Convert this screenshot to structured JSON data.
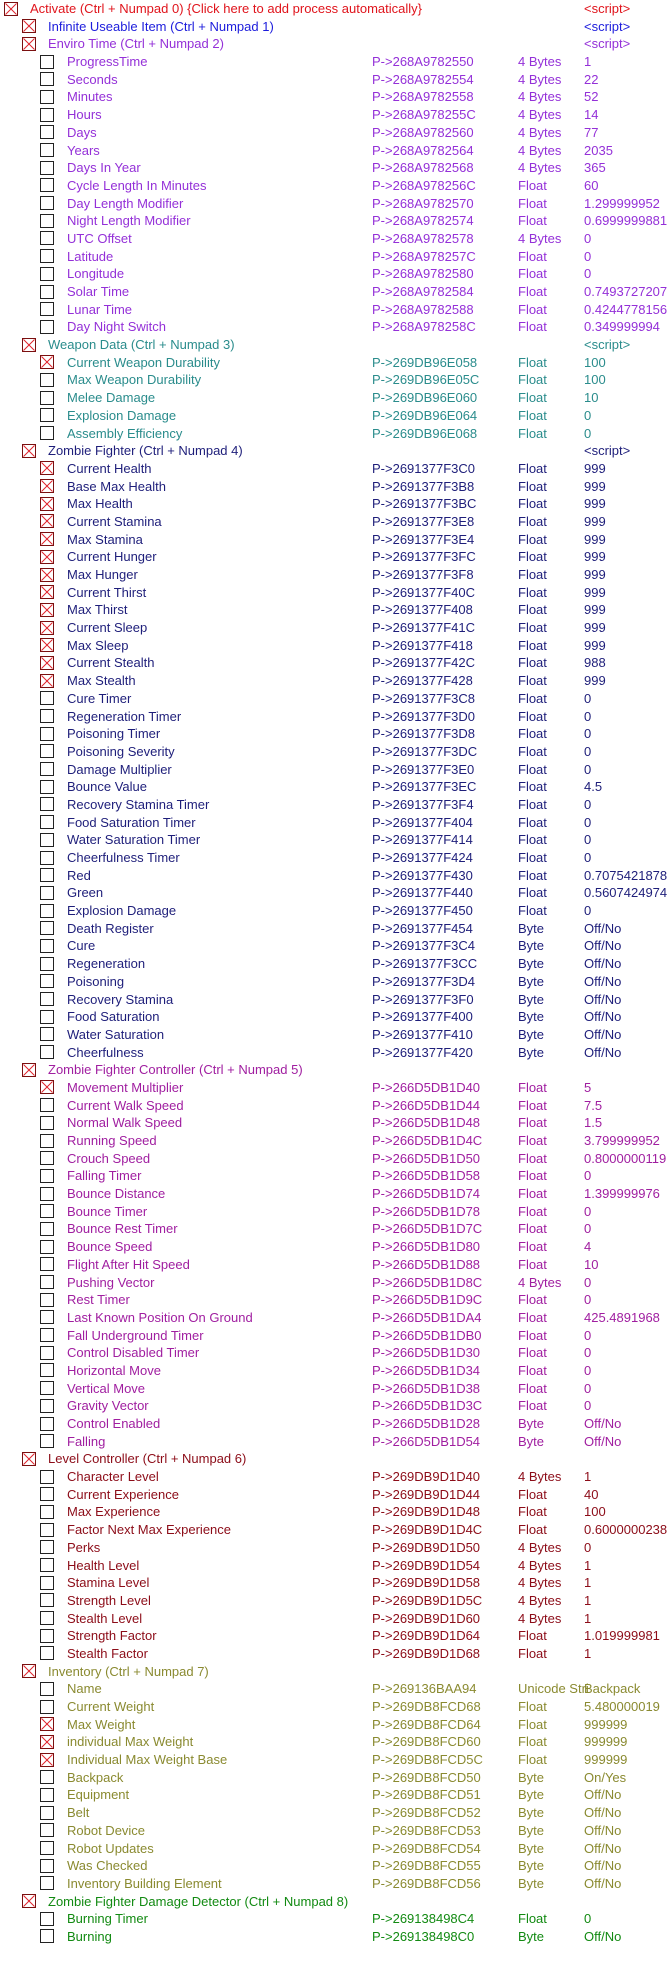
{
  "groups": [
    {
      "title": "Activate (Ctrl + Numpad 0) {Click here to add process automatically}",
      "level": 0,
      "checked": true,
      "value": "<script>",
      "color": "#e0141c",
      "items": []
    },
    {
      "title": "Infinite Useable Item (Ctrl + Numpad 1)",
      "level": 1,
      "checked": true,
      "value": "<script>",
      "color": "#1c1cdc",
      "items": []
    },
    {
      "title": "Enviro Time (Ctrl + Numpad 2)",
      "level": 1,
      "checked": true,
      "value": "<script>",
      "color": "#9430d8",
      "items": [
        [
          "ProgressTime",
          false,
          "P->268A9782550",
          "4 Bytes",
          "1"
        ],
        [
          "Seconds",
          false,
          "P->268A9782554",
          "4 Bytes",
          "22"
        ],
        [
          "Minutes",
          false,
          "P->268A9782558",
          "4 Bytes",
          "52"
        ],
        [
          "Hours",
          false,
          "P->268A978255C",
          "4 Bytes",
          "14"
        ],
        [
          "Days",
          false,
          "P->268A9782560",
          "4 Bytes",
          "77"
        ],
        [
          "Years",
          false,
          "P->268A9782564",
          "4 Bytes",
          "2035"
        ],
        [
          "Days In Year",
          false,
          "P->268A9782568",
          "4 Bytes",
          "365"
        ],
        [
          "Cycle Length In Minutes",
          false,
          "P->268A978256C",
          "Float",
          "60"
        ],
        [
          "Day Length Modifier",
          false,
          "P->268A9782570",
          "Float",
          "1.299999952"
        ],
        [
          "Night Length Modifier",
          false,
          "P->268A9782574",
          "Float",
          "0.6999999881"
        ],
        [
          "UTC Offset",
          false,
          "P->268A9782578",
          "4 Bytes",
          "0"
        ],
        [
          "Latitude",
          false,
          "P->268A978257C",
          "Float",
          "0"
        ],
        [
          "Longitude",
          false,
          "P->268A9782580",
          "Float",
          "0"
        ],
        [
          "Solar Time",
          false,
          "P->268A9782584",
          "Float",
          "0.7493727207"
        ],
        [
          "Lunar Time",
          false,
          "P->268A9782588",
          "Float",
          "0.4244778156"
        ],
        [
          "Day Night Switch",
          false,
          "P->268A978258C",
          "Float",
          "0.349999994"
        ]
      ]
    },
    {
      "title": "Weapon Data (Ctrl + Numpad 3)",
      "level": 1,
      "checked": true,
      "value": "<script>",
      "color": "#2a8c8c",
      "items": [
        [
          "Current Weapon Durability",
          true,
          "P->269DB96E058",
          "Float",
          "100"
        ],
        [
          "Max Weapon Durability",
          false,
          "P->269DB96E05C",
          "Float",
          "100"
        ],
        [
          "Melee Damage",
          false,
          "P->269DB96E060",
          "Float",
          "10"
        ],
        [
          "Explosion Damage",
          false,
          "P->269DB96E064",
          "Float",
          "0"
        ],
        [
          "Assembly Efficiency",
          false,
          "P->269DB96E068",
          "Float",
          "0"
        ]
      ]
    },
    {
      "title": "Zombie Fighter (Ctrl + Numpad 4)",
      "level": 1,
      "checked": true,
      "value": "<script>",
      "color": "#1e1e7a",
      "items": [
        [
          "Current Health",
          true,
          "P->2691377F3C0",
          "Float",
          "999"
        ],
        [
          "Base Max Health",
          true,
          "P->2691377F3B8",
          "Float",
          "999"
        ],
        [
          "Max Health",
          true,
          "P->2691377F3BC",
          "Float",
          "999"
        ],
        [
          "Current Stamina",
          true,
          "P->2691377F3E8",
          "Float",
          "999"
        ],
        [
          "Max Stamina",
          true,
          "P->2691377F3E4",
          "Float",
          "999"
        ],
        [
          "Current Hunger",
          true,
          "P->2691377F3FC",
          "Float",
          "999"
        ],
        [
          "Max Hunger",
          true,
          "P->2691377F3F8",
          "Float",
          "999"
        ],
        [
          "Current Thirst",
          true,
          "P->2691377F40C",
          "Float",
          "999"
        ],
        [
          "Max Thirst",
          true,
          "P->2691377F408",
          "Float",
          "999"
        ],
        [
          "Current Sleep",
          true,
          "P->2691377F41C",
          "Float",
          "999"
        ],
        [
          "Max Sleep",
          true,
          "P->2691377F418",
          "Float",
          "999"
        ],
        [
          "Current Stealth",
          true,
          "P->2691377F42C",
          "Float",
          "988"
        ],
        [
          "Max Stealth",
          true,
          "P->2691377F428",
          "Float",
          "999"
        ],
        [
          "Cure Timer",
          false,
          "P->2691377F3C8",
          "Float",
          "0"
        ],
        [
          "Regeneration Timer",
          false,
          "P->2691377F3D0",
          "Float",
          "0"
        ],
        [
          "Poisoning Timer",
          false,
          "P->2691377F3D8",
          "Float",
          "0"
        ],
        [
          "Poisoning Severity",
          false,
          "P->2691377F3DC",
          "Float",
          "0"
        ],
        [
          "Damage Multiplier",
          false,
          "P->2691377F3E0",
          "Float",
          "0"
        ],
        [
          "Bounce Value",
          false,
          "P->2691377F3EC",
          "Float",
          "4.5"
        ],
        [
          "Recovery Stamina Timer",
          false,
          "P->2691377F3F4",
          "Float",
          "0"
        ],
        [
          "Food Saturation Timer",
          false,
          "P->2691377F404",
          "Float",
          "0"
        ],
        [
          "Water Saturation Timer",
          false,
          "P->2691377F414",
          "Float",
          "0"
        ],
        [
          "Cheerfulness Timer",
          false,
          "P->2691377F424",
          "Float",
          "0"
        ],
        [
          "Red",
          false,
          "P->2691377F430",
          "Float",
          "0.7075421878"
        ],
        [
          "Green",
          false,
          "P->2691377F440",
          "Float",
          "0.5607424974"
        ],
        [
          "Explosion Damage",
          false,
          "P->2691377F450",
          "Float",
          "0"
        ],
        [
          "Death Register",
          false,
          "P->2691377F454",
          "Byte",
          "Off/No"
        ],
        [
          "Cure",
          false,
          "P->2691377F3C4",
          "Byte",
          "Off/No"
        ],
        [
          "Regeneration",
          false,
          "P->2691377F3CC",
          "Byte",
          "Off/No"
        ],
        [
          "Poisoning",
          false,
          "P->2691377F3D4",
          "Byte",
          "Off/No"
        ],
        [
          "Recovery Stamina",
          false,
          "P->2691377F3F0",
          "Byte",
          "Off/No"
        ],
        [
          "Food Saturation",
          false,
          "P->2691377F400",
          "Byte",
          "Off/No"
        ],
        [
          "Water Saturation",
          false,
          "P->2691377F410",
          "Byte",
          "Off/No"
        ],
        [
          "Cheerfulness",
          false,
          "P->2691377F420",
          "Byte",
          "Off/No"
        ]
      ]
    },
    {
      "title": "Zombie Fighter Controller (Ctrl + Numpad 5)",
      "level": 1,
      "checked": true,
      "value": "",
      "color": "#a01ea0",
      "items": [
        [
          "Movement Multiplier",
          true,
          "P->266D5DB1D40",
          "Float",
          "5"
        ],
        [
          "Current Walk Speed",
          false,
          "P->266D5DB1D44",
          "Float",
          "7.5"
        ],
        [
          "Normal Walk Speed",
          false,
          "P->266D5DB1D48",
          "Float",
          "1.5"
        ],
        [
          "Running Speed",
          false,
          "P->266D5DB1D4C",
          "Float",
          "3.799999952"
        ],
        [
          "Crouch Speed",
          false,
          "P->266D5DB1D50",
          "Float",
          "0.8000000119"
        ],
        [
          "Falling Timer",
          false,
          "P->266D5DB1D58",
          "Float",
          "0"
        ],
        [
          "Bounce Distance",
          false,
          "P->266D5DB1D74",
          "Float",
          "1.399999976"
        ],
        [
          "Bounce Timer",
          false,
          "P->266D5DB1D78",
          "Float",
          "0"
        ],
        [
          "Bounce Rest Timer",
          false,
          "P->266D5DB1D7C",
          "Float",
          "0"
        ],
        [
          "Bounce Speed",
          false,
          "P->266D5DB1D80",
          "Float",
          "4"
        ],
        [
          "Flight After Hit Speed",
          false,
          "P->266D5DB1D88",
          "Float",
          "10"
        ],
        [
          "Pushing Vector",
          false,
          "P->266D5DB1D8C",
          "4 Bytes",
          "0"
        ],
        [
          "Rest Timer",
          false,
          "P->266D5DB1D9C",
          "Float",
          "0"
        ],
        [
          "Last Known Position On Ground",
          false,
          "P->266D5DB1DA4",
          "Float",
          "425.4891968"
        ],
        [
          "Fall Underground Timer",
          false,
          "P->266D5DB1DB0",
          "Float",
          "0"
        ],
        [
          "Control Disabled Timer",
          false,
          "P->266D5DB1D30",
          "Float",
          "0"
        ],
        [
          "Horizontal Move",
          false,
          "P->266D5DB1D34",
          "Float",
          "0"
        ],
        [
          "Vertical Move",
          false,
          "P->266D5DB1D38",
          "Float",
          "0"
        ],
        [
          "Gravity Vector",
          false,
          "P->266D5DB1D3C",
          "Float",
          "0"
        ],
        [
          "Control Enabled",
          false,
          "P->266D5DB1D28",
          "Byte",
          "Off/No"
        ],
        [
          "Falling",
          false,
          "P->266D5DB1D54",
          "Byte",
          "Off/No"
        ]
      ]
    },
    {
      "title": "Level Controller (Ctrl + Numpad 6)",
      "level": 1,
      "checked": true,
      "value": "",
      "color": "#8c0c18",
      "items": [
        [
          "Character Level",
          false,
          "P->269DB9D1D40",
          "4 Bytes",
          "1"
        ],
        [
          "Current Experience",
          false,
          "P->269DB9D1D44",
          "Float",
          "40"
        ],
        [
          "Max Experience",
          false,
          "P->269DB9D1D48",
          "Float",
          "100"
        ],
        [
          "Factor Next Max Experience",
          false,
          "P->269DB9D1D4C",
          "Float",
          "0.6000000238"
        ],
        [
          "Perks",
          false,
          "P->269DB9D1D50",
          "4 Bytes",
          "0"
        ],
        [
          "Health Level",
          false,
          "P->269DB9D1D54",
          "4 Bytes",
          "1"
        ],
        [
          "Stamina Level",
          false,
          "P->269DB9D1D58",
          "4 Bytes",
          "1"
        ],
        [
          "Strength Level",
          false,
          "P->269DB9D1D5C",
          "4 Bytes",
          "1"
        ],
        [
          "Stealth Level",
          false,
          "P->269DB9D1D60",
          "4 Bytes",
          "1"
        ],
        [
          "Strength Factor",
          false,
          "P->269DB9D1D64",
          "Float",
          "1.019999981"
        ],
        [
          "Stealth Factor",
          false,
          "P->269DB9D1D68",
          "Float",
          "1"
        ]
      ]
    },
    {
      "title": "Inventory (Ctrl + Numpad 7)",
      "level": 1,
      "checked": true,
      "value": "",
      "color": "#8a8a30",
      "items": [
        [
          "Name",
          false,
          "P->269136BAA94",
          "Unicode Stri",
          "Backpack"
        ],
        [
          "Current Weight",
          false,
          "P->269DB8FCD68",
          "Float",
          "5.480000019"
        ],
        [
          "Max Weight",
          true,
          "P->269DB8FCD64",
          "Float",
          "999999"
        ],
        [
          "individual Max Weight",
          true,
          "P->269DB8FCD60",
          "Float",
          "999999"
        ],
        [
          "Individual Max Weight Base",
          true,
          "P->269DB8FCD5C",
          "Float",
          "999999"
        ],
        [
          "Backpack",
          false,
          "P->269DB8FCD50",
          "Byte",
          "On/Yes"
        ],
        [
          "Equipment",
          false,
          "P->269DB8FCD51",
          "Byte",
          "Off/No"
        ],
        [
          "Belt",
          false,
          "P->269DB8FCD52",
          "Byte",
          "Off/No"
        ],
        [
          "Robot Device",
          false,
          "P->269DB8FCD53",
          "Byte",
          "Off/No"
        ],
        [
          "Robot Updates",
          false,
          "P->269DB8FCD54",
          "Byte",
          "Off/No"
        ],
        [
          "Was Checked",
          false,
          "P->269DB8FCD55",
          "Byte",
          "Off/No"
        ],
        [
          "Inventory Building Element",
          false,
          "P->269DB8FCD56",
          "Byte",
          "Off/No"
        ]
      ]
    },
    {
      "title": "Zombie Fighter Damage Detector (Ctrl + Numpad 8)",
      "level": 1,
      "checked": true,
      "value": "",
      "color": "#128a12",
      "items": [
        [
          "Burning Timer",
          false,
          "P->269138498C4",
          "Float",
          "0"
        ],
        [
          "Burning",
          false,
          "P->269138498C0",
          "Byte",
          "Off/No"
        ]
      ]
    }
  ]
}
